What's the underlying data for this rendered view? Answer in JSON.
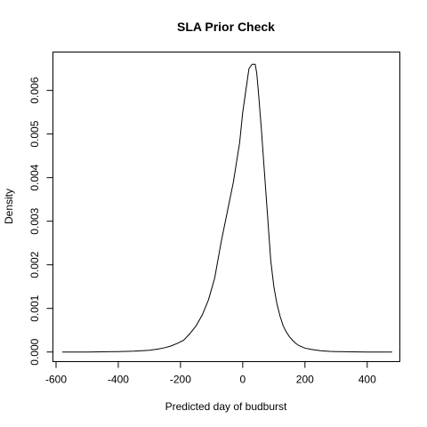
{
  "chart_data": {
    "type": "line",
    "title": "SLA Prior Check",
    "xlabel": "Predicted day of budburst",
    "ylabel": "Density",
    "xlim": [
      -610,
      505
    ],
    "ylim": [
      -0.00022,
      0.00688
    ],
    "xticks": [
      {
        "value": -600,
        "label": "-600"
      },
      {
        "value": -400,
        "label": "-400"
      },
      {
        "value": -200,
        "label": "-200"
      },
      {
        "value": 0,
        "label": "0"
      },
      {
        "value": 200,
        "label": "200"
      },
      {
        "value": 400,
        "label": "400"
      }
    ],
    "yticks": [
      {
        "value": 0.0,
        "label": "0.000"
      },
      {
        "value": 0.001,
        "label": "0.001"
      },
      {
        "value": 0.002,
        "label": "0.002"
      },
      {
        "value": 0.003,
        "label": "0.003"
      },
      {
        "value": 0.004,
        "label": "0.004"
      },
      {
        "value": 0.005,
        "label": "0.005"
      },
      {
        "value": 0.006,
        "label": "0.006"
      }
    ],
    "grid": false,
    "series": [
      {
        "x": [
          -580,
          -500,
          -400,
          -350,
          -300,
          -270,
          -250,
          -230,
          -210,
          -190,
          -170,
          -150,
          -130,
          -110,
          -90,
          -70,
          -50,
          -30,
          -10,
          0,
          10,
          20,
          30,
          35,
          40,
          45,
          50,
          60,
          70,
          80,
          90,
          100,
          110,
          120,
          130,
          140,
          150,
          160,
          170,
          180,
          200,
          220,
          250,
          280,
          300,
          350,
          400,
          480
        ],
        "y": [
          0.0,
          0.0,
          1e-05,
          2e-05,
          4e-05,
          7e-05,
          0.0001,
          0.00014,
          0.0002,
          0.00027,
          0.00042,
          0.0006,
          0.00085,
          0.0012,
          0.0017,
          0.0025,
          0.0032,
          0.0039,
          0.0048,
          0.0055,
          0.006,
          0.0065,
          0.0066,
          0.0066,
          0.0066,
          0.0064,
          0.006,
          0.0051,
          0.0041,
          0.0031,
          0.0021,
          0.0015,
          0.0011,
          0.00082,
          0.0006,
          0.00046,
          0.00035,
          0.00027,
          0.0002,
          0.00015,
          9e-05,
          6e-05,
          3e-05,
          1.5e-05,
          1e-05,
          5e-06,
          0.0,
          0.0
        ]
      }
    ]
  }
}
